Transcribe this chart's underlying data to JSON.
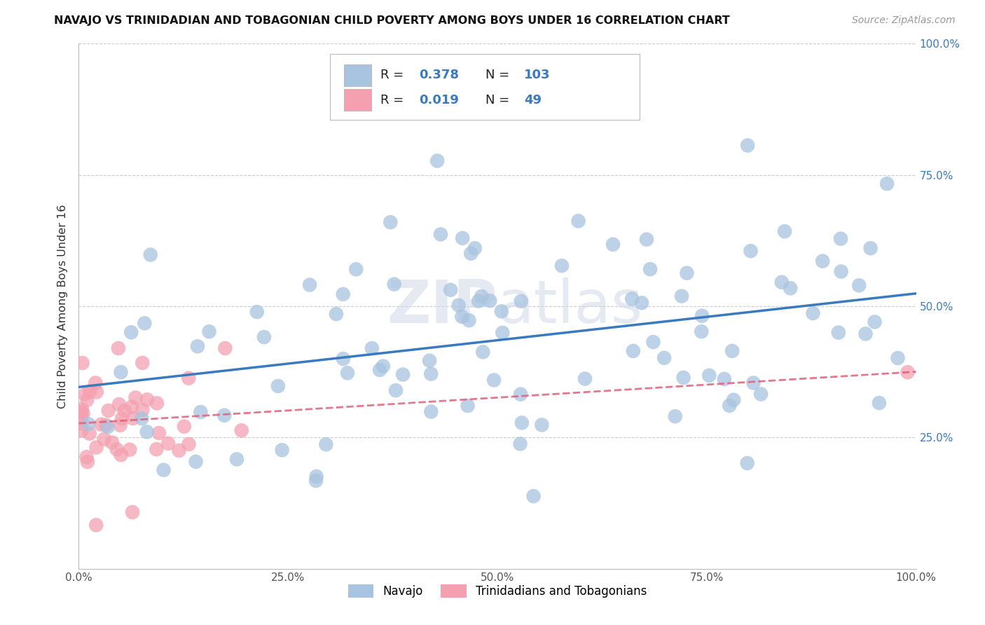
{
  "title": "NAVAJO VS TRINIDADIAN AND TOBAGONIAN CHILD POVERTY AMONG BOYS UNDER 16 CORRELATION CHART",
  "source": "Source: ZipAtlas.com",
  "ylabel": "Child Poverty Among Boys Under 16",
  "watermark": "ZIPatlas",
  "legend_labels": [
    "Navajo",
    "Trinidadians and Tobagonians"
  ],
  "navajo_R": 0.378,
  "navajo_N": 103,
  "trini_R": 0.019,
  "trini_N": 49,
  "navajo_color": "#a8c4e0",
  "trini_color": "#f4a0b0",
  "navajo_line_color": "#3a7abf",
  "trini_line_color": "#e0607a",
  "R_color": "#3a7abf",
  "xlim": [
    0,
    1
  ],
  "ylim": [
    0,
    1
  ],
  "xticks": [
    0,
    0.25,
    0.5,
    0.75,
    1.0
  ],
  "yticks": [
    0,
    0.25,
    0.5,
    0.75,
    1.0
  ],
  "xtick_labels": [
    "0.0%",
    "25.0%",
    "50.0%",
    "75.0%",
    "100.0%"
  ],
  "right_ytick_labels": [
    "",
    "25.0%",
    "50.0%",
    "75.0%",
    "100.0%"
  ],
  "background_color": "#ffffff",
  "grid_color": "#cccccc"
}
